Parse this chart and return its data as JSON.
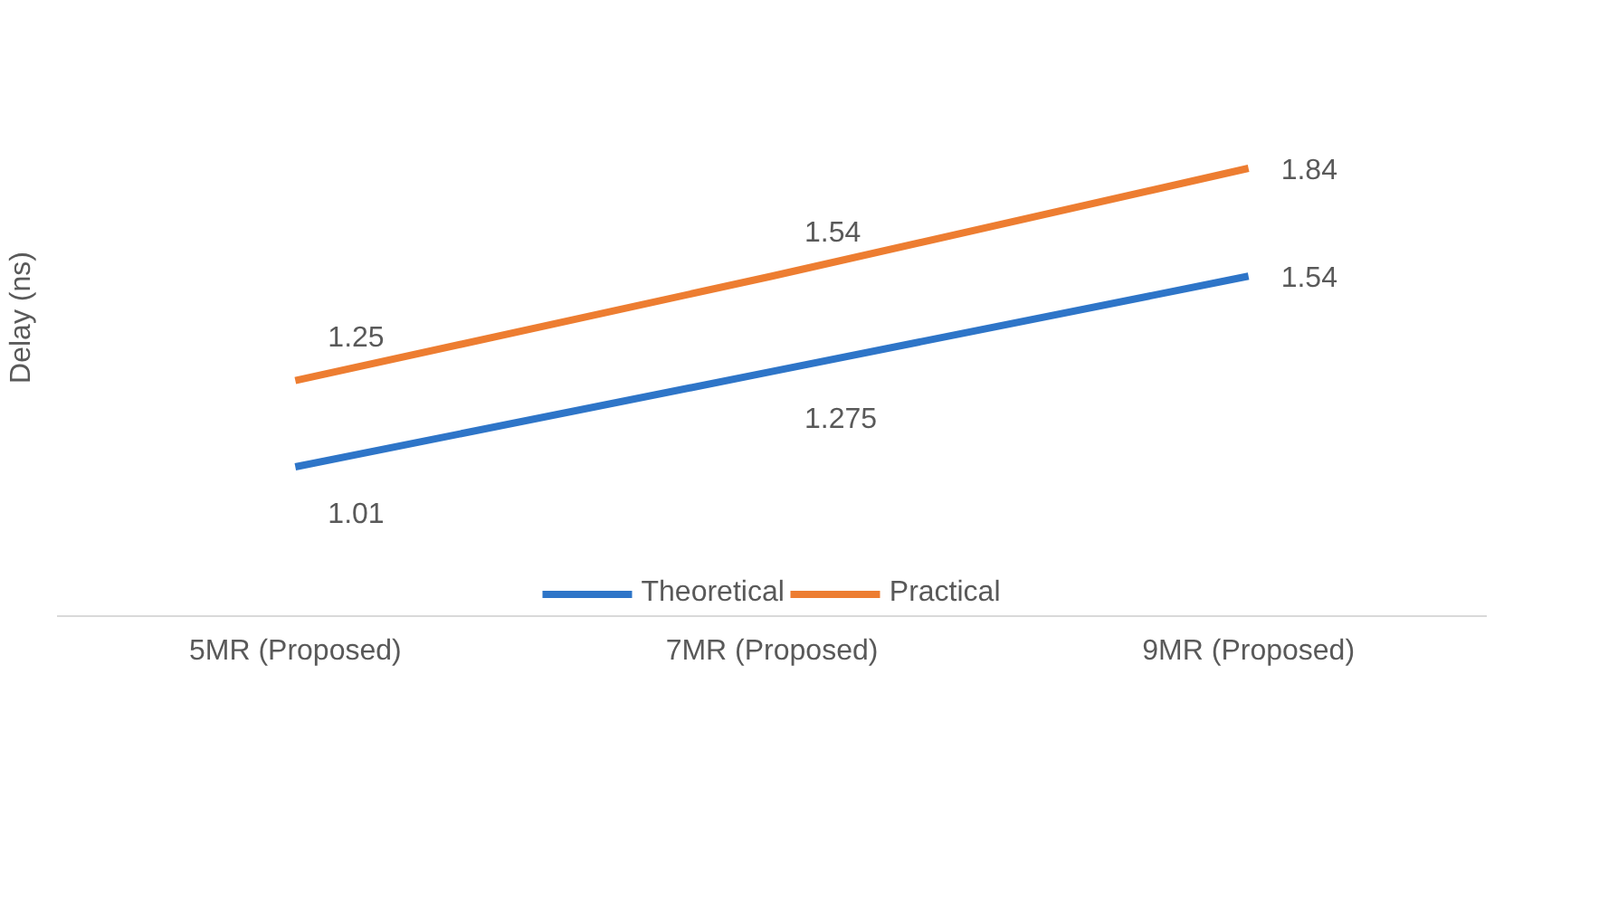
{
  "chart_data": {
    "type": "line",
    "ylabel": "Delay (ns)",
    "categories": [
      "5MR (Proposed)",
      "7MR (Proposed)",
      "9MR (Proposed)"
    ],
    "series": [
      {
        "name": "Theoretical",
        "color": "#2e75c8",
        "values": [
          1.01,
          1.275,
          1.54
        ]
      },
      {
        "name": "Practical",
        "color": "#ed7d31",
        "values": [
          1.25,
          1.54,
          1.84
        ]
      }
    ],
    "tick_labels": "x",
    "data_labels": true,
    "legend": "bottom",
    "grid": false,
    "marker": "none",
    "line_style": "solid"
  }
}
